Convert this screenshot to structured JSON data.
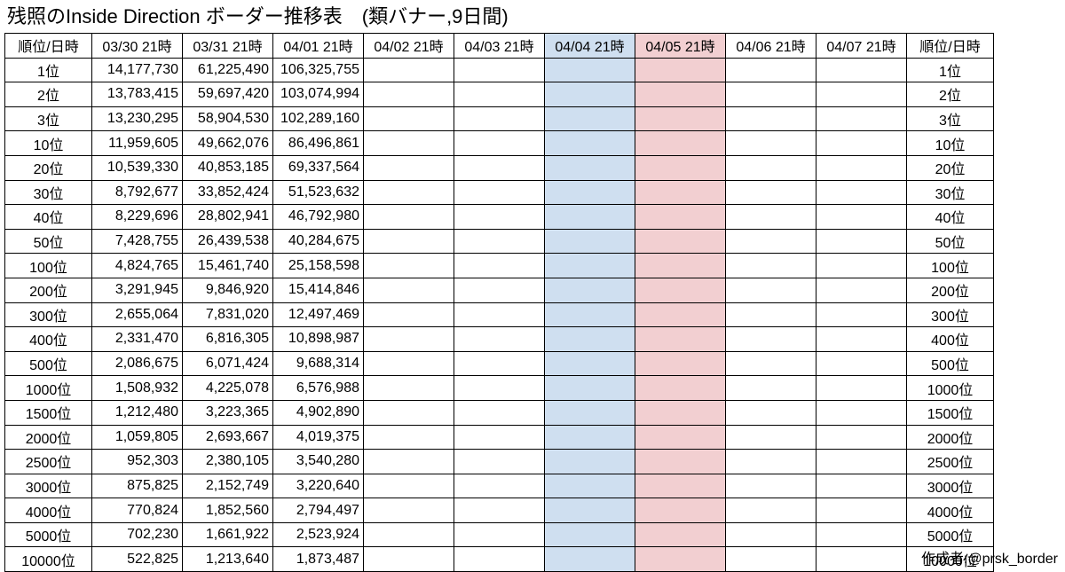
{
  "title": "残照のInside Direction ボーダー推移表　(類バナー,9日間)",
  "table": {
    "rank_header": "順位/日時",
    "dates": [
      "03/30 21時",
      "03/31 21時",
      "04/01 21時",
      "04/02 21時",
      "04/03 21時",
      "04/04 21時",
      "04/05 21時",
      "04/06 21時",
      "04/07 21時"
    ],
    "highlight_columns": {
      "04/04 21時": "#cfdff0",
      "04/05 21時": "#f2cfd1"
    },
    "rows": [
      {
        "rank": "1位",
        "values": [
          "14,177,730",
          "61,225,490",
          "106,325,755",
          "",
          "",
          "",
          "",
          "",
          ""
        ]
      },
      {
        "rank": "2位",
        "values": [
          "13,783,415",
          "59,697,420",
          "103,074,994",
          "",
          "",
          "",
          "",
          "",
          ""
        ]
      },
      {
        "rank": "3位",
        "values": [
          "13,230,295",
          "58,904,530",
          "102,289,160",
          "",
          "",
          "",
          "",
          "",
          ""
        ]
      },
      {
        "rank": "10位",
        "values": [
          "11,959,605",
          "49,662,076",
          "86,496,861",
          "",
          "",
          "",
          "",
          "",
          ""
        ]
      },
      {
        "rank": "20位",
        "values": [
          "10,539,330",
          "40,853,185",
          "69,337,564",
          "",
          "",
          "",
          "",
          "",
          ""
        ]
      },
      {
        "rank": "30位",
        "values": [
          "8,792,677",
          "33,852,424",
          "51,523,632",
          "",
          "",
          "",
          "",
          "",
          ""
        ]
      },
      {
        "rank": "40位",
        "values": [
          "8,229,696",
          "28,802,941",
          "46,792,980",
          "",
          "",
          "",
          "",
          "",
          ""
        ]
      },
      {
        "rank": "50位",
        "values": [
          "7,428,755",
          "26,439,538",
          "40,284,675",
          "",
          "",
          "",
          "",
          "",
          ""
        ]
      },
      {
        "rank": "100位",
        "values": [
          "4,824,765",
          "15,461,740",
          "25,158,598",
          "",
          "",
          "",
          "",
          "",
          ""
        ]
      },
      {
        "rank": "200位",
        "values": [
          "3,291,945",
          "9,846,920",
          "15,414,846",
          "",
          "",
          "",
          "",
          "",
          ""
        ]
      },
      {
        "rank": "300位",
        "values": [
          "2,655,064",
          "7,831,020",
          "12,497,469",
          "",
          "",
          "",
          "",
          "",
          ""
        ]
      },
      {
        "rank": "400位",
        "values": [
          "2,331,470",
          "6,816,305",
          "10,898,987",
          "",
          "",
          "",
          "",
          "",
          ""
        ]
      },
      {
        "rank": "500位",
        "values": [
          "2,086,675",
          "6,071,424",
          "9,688,314",
          "",
          "",
          "",
          "",
          "",
          ""
        ]
      },
      {
        "rank": "1000位",
        "values": [
          "1,508,932",
          "4,225,078",
          "6,576,988",
          "",
          "",
          "",
          "",
          "",
          ""
        ]
      },
      {
        "rank": "1500位",
        "values": [
          "1,212,480",
          "3,223,365",
          "4,902,890",
          "",
          "",
          "",
          "",
          "",
          ""
        ]
      },
      {
        "rank": "2000位",
        "values": [
          "1,059,805",
          "2,693,667",
          "4,019,375",
          "",
          "",
          "",
          "",
          "",
          ""
        ]
      },
      {
        "rank": "2500位",
        "values": [
          "952,303",
          "2,380,105",
          "3,540,280",
          "",
          "",
          "",
          "",
          "",
          ""
        ]
      },
      {
        "rank": "3000位",
        "values": [
          "875,825",
          "2,152,749",
          "3,220,640",
          "",
          "",
          "",
          "",
          "",
          ""
        ]
      },
      {
        "rank": "4000位",
        "values": [
          "770,824",
          "1,852,560",
          "2,794,497",
          "",
          "",
          "",
          "",
          "",
          ""
        ]
      },
      {
        "rank": "5000位",
        "values": [
          "702,230",
          "1,661,922",
          "2,523,924",
          "",
          "",
          "",
          "",
          "",
          ""
        ]
      },
      {
        "rank": "10000位",
        "values": [
          "522,825",
          "1,213,640",
          "1,873,487",
          "",
          "",
          "",
          "",
          "",
          ""
        ]
      }
    ]
  },
  "footer": "作成者:@prsk_border"
}
